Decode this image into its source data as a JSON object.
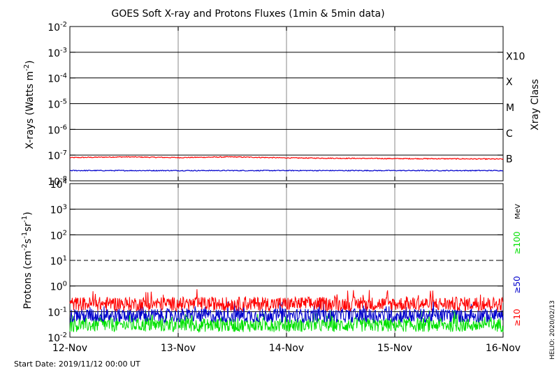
{
  "title": "GOES Soft X-ray and Protons Fluxes   (1min & 5min data)",
  "footer": {
    "start_date": "Start Date: 2019/11/12 00:00 UT",
    "credit": "HELIO: 2020/02/13"
  },
  "colors": {
    "long": "#ff0000",
    "short": "#0000cc",
    "p100": "#00e000",
    "grid": "#000000",
    "vgrid": "#b0b0b0"
  },
  "chart_data": [
    {
      "type": "line",
      "panel": "xray",
      "ylabel": "X-rays (Watts m",
      "ylabel_exp": "-2",
      "ylabel_tail": ")",
      "y_scale": "log",
      "ylim": [
        1e-08,
        0.01
      ],
      "xlim": [
        "2019-11-12",
        "2019-11-16"
      ],
      "x_ticks": [
        "12-Nov",
        "13-Nov",
        "14-Nov",
        "15-Nov",
        "16-Nov"
      ],
      "y_ticks": [
        {
          "base": "10",
          "exp": "-2"
        },
        {
          "base": "10",
          "exp": "-3"
        },
        {
          "base": "10",
          "exp": "-4"
        },
        {
          "base": "10",
          "exp": "-5"
        },
        {
          "base": "10",
          "exp": "-6"
        },
        {
          "base": "10",
          "exp": "-7"
        },
        {
          "base": "10",
          "exp": "-8"
        }
      ],
      "class_label": "Xray Class",
      "classes": [
        "X10",
        "X",
        "M",
        "C",
        "B"
      ],
      "series": [
        {
          "key": "long",
          "x_days": [
            0,
            0.5,
            1,
            1.5,
            2,
            2.5,
            3,
            3.5,
            4
          ],
          "y": [
            8e-08,
            8.5e-08,
            8e-08,
            8.5e-08,
            7.8e-08,
            7.5e-08,
            7.3e-08,
            7.2e-08,
            7e-08
          ]
        },
        {
          "key": "short",
          "x_days": [
            0,
            1,
            2,
            3,
            4
          ],
          "y": [
            2.5e-08,
            2.5e-08,
            2.5e-08,
            2.5e-08,
            2.5e-08
          ]
        }
      ],
      "grid": true
    },
    {
      "type": "line",
      "panel": "protons",
      "ylabel": "Protons (cm",
      "ylabel_exp1": "-2",
      "ylabel_mid": "s",
      "ylabel_exp2": "-1",
      "ylabel_mid2": "sr",
      "ylabel_exp3": "-1",
      "ylabel_tail": ")",
      "y_scale": "log",
      "ylim": [
        0.01,
        10000
      ],
      "y_ticks": [
        {
          "base": "10",
          "exp": "4"
        },
        {
          "base": "10",
          "exp": "3"
        },
        {
          "base": "10",
          "exp": "2"
        },
        {
          "base": "10",
          "exp": "1"
        },
        {
          "base": "10",
          "exp": "0"
        },
        {
          "base": "10",
          "exp": "-1"
        },
        {
          "base": "10",
          "exp": "-2"
        }
      ],
      "threshold": 10,
      "unit_label": "MeV",
      "series": [
        {
          "key": "p100",
          "name": "≥100",
          "level": 0.03
        },
        {
          "key": "short",
          "name": "≥50",
          "level": 0.07
        },
        {
          "key": "long",
          "name": "≥10",
          "level": 0.2
        }
      ],
      "grid": true
    }
  ]
}
